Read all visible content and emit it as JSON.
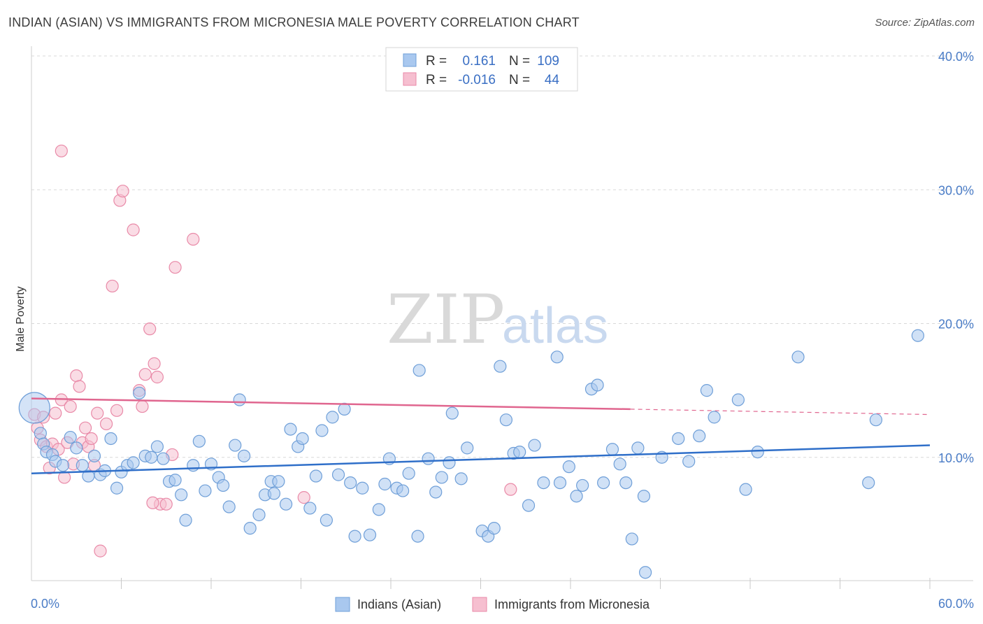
{
  "header": {
    "title": "INDIAN (ASIAN) VS IMMIGRANTS FROM MICRONESIA MALE POVERTY CORRELATION CHART",
    "source": "Source: ZipAtlas.com"
  },
  "watermark": {
    "zip": "ZIP",
    "atlas": "atlas"
  },
  "colors": {
    "blue_fill": "#a9c8ef",
    "blue_stroke": "#6f9fd8",
    "blue_line": "#2f6fc9",
    "pink_fill": "#f6bfd0",
    "pink_stroke": "#e98aa8",
    "pink_line": "#e0668f",
    "grid": "#d8d8d8",
    "tick_text": "#4a7cc6"
  },
  "stats": {
    "blue": {
      "r_label": "R =",
      "r_value": "0.161",
      "n_label": "N =",
      "n_value": "109"
    },
    "pink": {
      "r_label": "R =",
      "r_value": "-0.016",
      "n_label": "N =",
      "n_value": "44"
    }
  },
  "chart_data": {
    "type": "scatter",
    "xlabel": "",
    "ylabel": "Male Poverty",
    "xlim": [
      0,
      60
    ],
    "ylim": [
      0,
      40
    ],
    "x_ticks": [
      "0.0%",
      "60.0%"
    ],
    "y_ticks": [
      {
        "value": 10,
        "label": "10.0%"
      },
      {
        "value": 20,
        "label": "20.0%"
      },
      {
        "value": 30,
        "label": "30.0%"
      },
      {
        "value": 40,
        "label": "40.0%"
      }
    ],
    "grid": "horizontal dashed",
    "legend_position": "bottom",
    "series": [
      {
        "name": "Indians (Asian)",
        "color": "#a9c8ef",
        "trend": {
          "x": [
            0,
            60
          ],
          "y": [
            8.8,
            10.9
          ]
        },
        "points": [
          [
            0.2,
            13.7
          ],
          [
            0.6,
            11.8
          ],
          [
            0.8,
            11.0
          ],
          [
            1.0,
            10.4
          ],
          [
            1.4,
            10.2
          ],
          [
            1.6,
            9.7
          ],
          [
            2.1,
            9.4
          ],
          [
            2.6,
            11.5
          ],
          [
            3.0,
            10.7
          ],
          [
            3.4,
            9.4
          ],
          [
            3.8,
            8.6
          ],
          [
            4.2,
            10.1
          ],
          [
            4.6,
            8.7
          ],
          [
            4.9,
            9.0
          ],
          [
            5.3,
            11.4
          ],
          [
            5.7,
            7.7
          ],
          [
            6.0,
            8.9
          ],
          [
            6.4,
            9.4
          ],
          [
            6.8,
            9.6
          ],
          [
            7.2,
            14.8
          ],
          [
            7.6,
            10.1
          ],
          [
            8.0,
            10.0
          ],
          [
            8.4,
            10.8
          ],
          [
            8.8,
            9.9
          ],
          [
            9.2,
            8.2
          ],
          [
            9.6,
            8.3
          ],
          [
            10.0,
            7.2
          ],
          [
            10.3,
            5.3
          ],
          [
            10.8,
            9.4
          ],
          [
            11.2,
            11.2
          ],
          [
            11.6,
            7.5
          ],
          [
            12.0,
            9.5
          ],
          [
            12.5,
            8.5
          ],
          [
            12.8,
            7.9
          ],
          [
            13.2,
            6.3
          ],
          [
            13.6,
            10.9
          ],
          [
            13.9,
            14.3
          ],
          [
            14.2,
            10.1
          ],
          [
            14.6,
            4.7
          ],
          [
            15.2,
            5.7
          ],
          [
            15.6,
            7.2
          ],
          [
            16.0,
            8.2
          ],
          [
            16.5,
            8.2
          ],
          [
            16.2,
            7.3
          ],
          [
            17.0,
            6.5
          ],
          [
            17.3,
            12.1
          ],
          [
            17.8,
            10.8
          ],
          [
            18.1,
            11.4
          ],
          [
            18.6,
            6.2
          ],
          [
            19.0,
            8.6
          ],
          [
            19.4,
            12.0
          ],
          [
            19.7,
            5.3
          ],
          [
            20.1,
            13.0
          ],
          [
            20.5,
            8.7
          ],
          [
            20.9,
            13.6
          ],
          [
            21.3,
            8.1
          ],
          [
            21.6,
            4.1
          ],
          [
            22.1,
            7.7
          ],
          [
            22.6,
            4.2
          ],
          [
            23.2,
            6.1
          ],
          [
            23.6,
            8.0
          ],
          [
            23.9,
            9.9
          ],
          [
            24.4,
            7.7
          ],
          [
            24.8,
            7.5
          ],
          [
            25.2,
            8.8
          ],
          [
            25.8,
            4.1
          ],
          [
            25.9,
            16.5
          ],
          [
            26.5,
            9.9
          ],
          [
            27.0,
            7.4
          ],
          [
            27.4,
            8.5
          ],
          [
            27.9,
            9.6
          ],
          [
            28.1,
            13.3
          ],
          [
            28.7,
            8.4
          ],
          [
            29.1,
            10.7
          ],
          [
            30.1,
            4.5
          ],
          [
            30.5,
            4.1
          ],
          [
            30.9,
            4.7
          ],
          [
            31.3,
            16.8
          ],
          [
            31.7,
            12.8
          ],
          [
            32.2,
            10.3
          ],
          [
            32.6,
            10.4
          ],
          [
            33.2,
            6.4
          ],
          [
            33.6,
            10.9
          ],
          [
            34.2,
            8.1
          ],
          [
            35.1,
            17.5
          ],
          [
            35.3,
            8.1
          ],
          [
            35.9,
            9.3
          ],
          [
            36.4,
            7.1
          ],
          [
            36.8,
            7.9
          ],
          [
            37.4,
            15.1
          ],
          [
            37.8,
            15.4
          ],
          [
            38.2,
            8.1
          ],
          [
            38.8,
            10.6
          ],
          [
            39.3,
            9.5
          ],
          [
            39.7,
            8.1
          ],
          [
            40.1,
            3.9
          ],
          [
            40.5,
            10.7
          ],
          [
            40.9,
            7.1
          ],
          [
            41.0,
            1.4
          ],
          [
            42.1,
            10.0
          ],
          [
            43.2,
            11.4
          ],
          [
            43.9,
            9.7
          ],
          [
            44.6,
            11.6
          ],
          [
            45.1,
            15.0
          ],
          [
            45.6,
            13.0
          ],
          [
            47.2,
            14.3
          ],
          [
            47.7,
            7.6
          ],
          [
            48.5,
            10.4
          ],
          [
            51.2,
            17.5
          ],
          [
            55.9,
            8.1
          ],
          [
            56.4,
            12.8
          ],
          [
            59.2,
            19.1
          ]
        ]
      },
      {
        "name": "Immigrants from Micronesia",
        "color": "#f6bfd0",
        "trend": {
          "x": [
            0,
            40
          ],
          "y": [
            14.4,
            13.6
          ]
        },
        "trend_dashed": {
          "x": [
            40,
            60
          ],
          "y": [
            13.6,
            13.2
          ]
        },
        "points": [
          [
            0.2,
            13.2
          ],
          [
            0.4,
            12.2
          ],
          [
            0.6,
            11.3
          ],
          [
            0.8,
            13.0
          ],
          [
            1.0,
            10.8
          ],
          [
            1.2,
            9.2
          ],
          [
            1.4,
            11.0
          ],
          [
            1.6,
            13.3
          ],
          [
            1.8,
            10.6
          ],
          [
            2.0,
            14.3
          ],
          [
            2.2,
            8.5
          ],
          [
            2.4,
            11.1
          ],
          [
            2.6,
            13.8
          ],
          [
            2.8,
            9.5
          ],
          [
            3.0,
            16.1
          ],
          [
            3.2,
            15.3
          ],
          [
            3.4,
            11.1
          ],
          [
            3.6,
            12.2
          ],
          [
            3.8,
            10.8
          ],
          [
            4.0,
            11.4
          ],
          [
            4.2,
            9.4
          ],
          [
            4.4,
            13.3
          ],
          [
            4.6,
            3.0
          ],
          [
            5.0,
            12.5
          ],
          [
            5.4,
            22.8
          ],
          [
            5.7,
            13.5
          ],
          [
            5.9,
            29.2
          ],
          [
            6.1,
            29.9
          ],
          [
            2.0,
            32.9
          ],
          [
            6.8,
            27.0
          ],
          [
            7.2,
            15.0
          ],
          [
            7.6,
            16.2
          ],
          [
            7.9,
            19.6
          ],
          [
            8.2,
            17.0
          ],
          [
            8.4,
            16.0
          ],
          [
            8.6,
            6.5
          ],
          [
            9.0,
            6.5
          ],
          [
            9.4,
            10.2
          ],
          [
            9.6,
            24.2
          ],
          [
            10.8,
            26.3
          ],
          [
            7.4,
            13.8
          ],
          [
            18.2,
            7.0
          ],
          [
            32.0,
            7.6
          ],
          [
            8.1,
            6.6
          ]
        ]
      }
    ]
  },
  "legend": {
    "items": [
      {
        "label": "Indians (Asian)",
        "color": "#a9c8ef",
        "stroke": "#6f9fd8"
      },
      {
        "label": "Immigrants from Micronesia",
        "color": "#f6bfd0",
        "stroke": "#e98aa8"
      }
    ]
  }
}
